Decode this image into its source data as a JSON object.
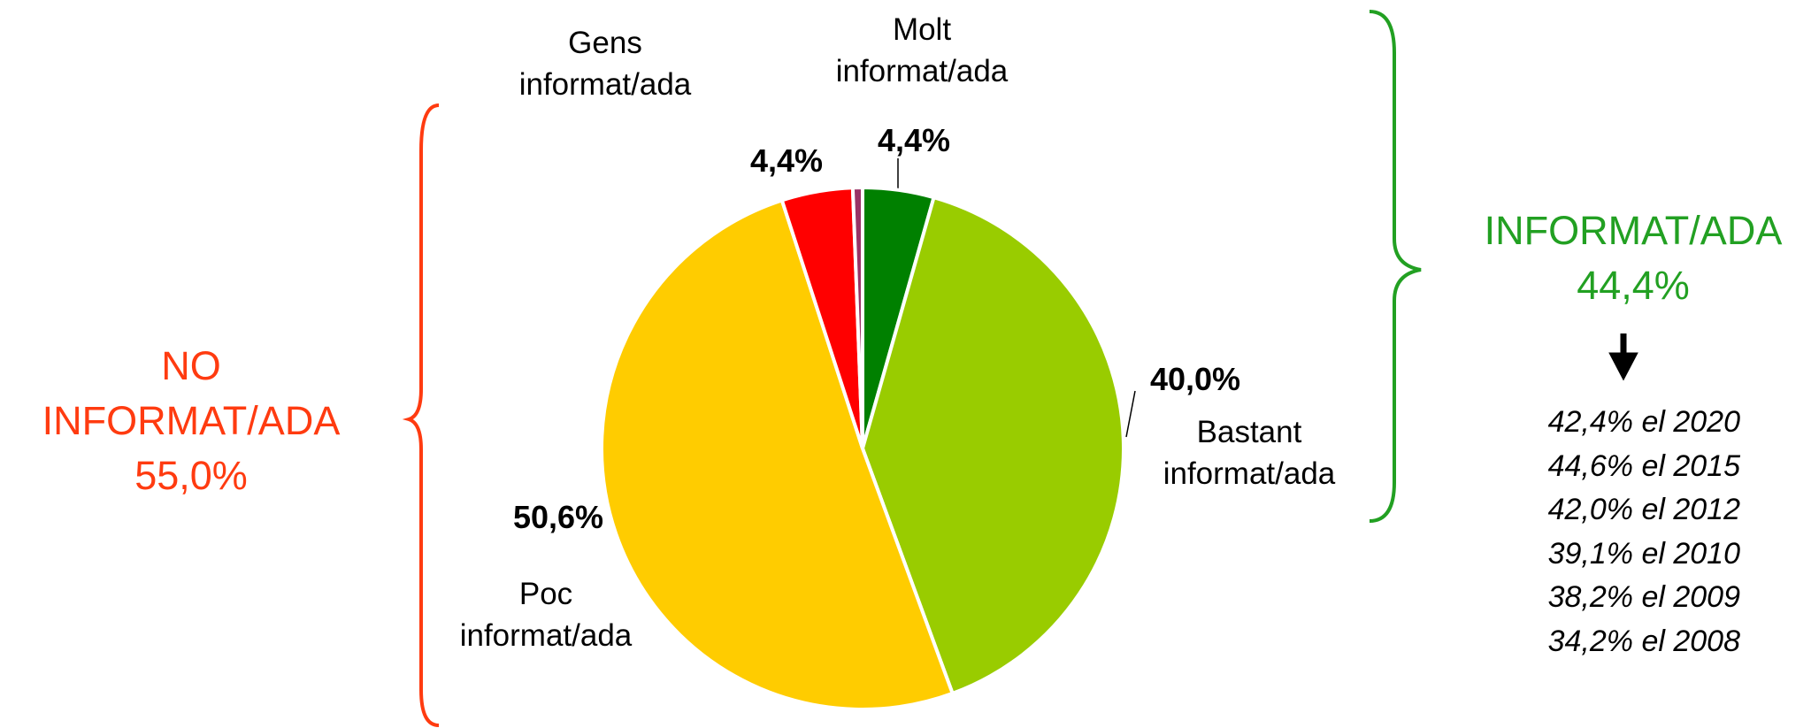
{
  "chart_data": {
    "type": "pie",
    "categories": [
      "Molt informat/ada",
      "Bastant informat/ada",
      "Poc informat/ada",
      "Gens informat/ada",
      null
    ],
    "values": [
      4.4,
      40.0,
      50.6,
      4.4,
      0.6
    ],
    "value_labels": [
      "4,4%",
      "40,0%",
      "50,6%",
      "4,4%",
      null
    ],
    "colors": [
      "#008000",
      "#99cc00",
      "#ffcc00",
      "#ff0000",
      "#993366"
    ],
    "left_annotation": [
      "NO",
      "INFORMAT/ADA",
      "55,0%"
    ],
    "right_annotation": [
      "INFORMAT/ADA",
      "44,4%"
    ],
    "history": [
      "42,4% el 2020",
      "44,6% el 2015",
      "42,0% el 2012",
      "39,1% el 2010",
      "38,2% el 2009",
      "34,2% el 2008"
    ]
  }
}
